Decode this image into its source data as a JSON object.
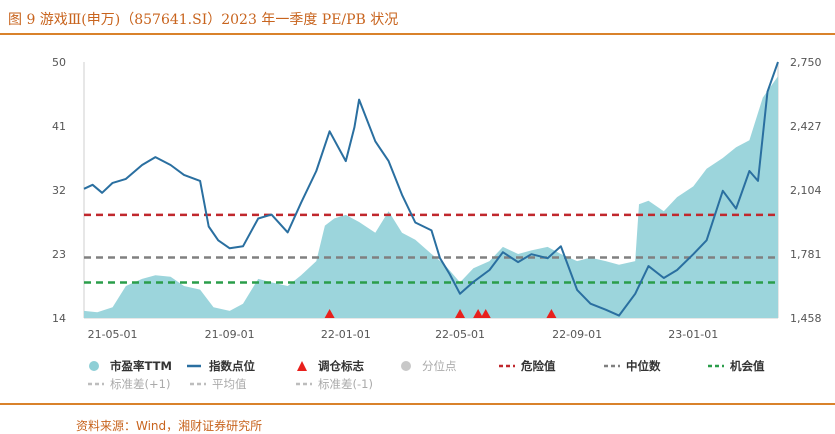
{
  "title": "图 9  游戏Ⅲ(申万)（857641.SI）2023 年一季度 PE/PB 状况",
  "source": "资料来源：Wind，湘财证券研究所",
  "chart_data": {
    "type": "area",
    "left_axis": {
      "min": 14,
      "max": 50,
      "ticks": [
        "50",
        "41",
        "32",
        "23",
        "14"
      ]
    },
    "right_axis": {
      "min": 1458,
      "max": 2750,
      "ticks": [
        "2,750",
        "2,427",
        "2,104",
        "1,781",
        "1,458"
      ]
    },
    "x_ticks": [
      "21-05-01",
      "21-09-01",
      "22-01-01",
      "22-05-01",
      "22-09-01",
      "23-01-01"
    ],
    "reference_lines": [
      {
        "name": "危险值",
        "value": 28.5,
        "color": "#c0282d"
      },
      {
        "name": "中位数",
        "value": 22.5,
        "color": "#808080"
      },
      {
        "name": "机会值",
        "value": 19.0,
        "color": "#2a9d4a"
      }
    ],
    "series": [
      {
        "name": "市盈率TTM",
        "axis": "left",
        "color": "#9cd5dc",
        "points": [
          [
            "2021-04-01",
            15.0
          ],
          [
            "2021-04-15",
            14.8
          ],
          [
            "2021-05-01",
            15.5
          ],
          [
            "2021-05-15",
            18.5
          ],
          [
            "2021-06-01",
            19.5
          ],
          [
            "2021-06-15",
            20.0
          ],
          [
            "2021-07-01",
            19.8
          ],
          [
            "2021-07-15",
            18.5
          ],
          [
            "2021-08-01",
            18.0
          ],
          [
            "2021-08-15",
            15.5
          ],
          [
            "2021-09-01",
            15.0
          ],
          [
            "2021-09-15",
            16.0
          ],
          [
            "2021-10-01",
            19.5
          ],
          [
            "2021-10-15",
            19.0
          ],
          [
            "2021-11-01",
            18.5
          ],
          [
            "2021-11-15",
            20.0
          ],
          [
            "2021-12-01",
            22.0
          ],
          [
            "2021-12-10",
            27.0
          ],
          [
            "2021-12-20",
            28.0
          ],
          [
            "2022-01-01",
            28.5
          ],
          [
            "2022-01-15",
            27.5
          ],
          [
            "2022-02-01",
            26.0
          ],
          [
            "2022-02-15",
            29.0
          ],
          [
            "2022-03-01",
            26.0
          ],
          [
            "2022-03-15",
            25.0
          ],
          [
            "2022-04-01",
            23.0
          ],
          [
            "2022-04-15",
            21.5
          ],
          [
            "2022-05-01",
            19.0
          ],
          [
            "2022-05-15",
            21.0
          ],
          [
            "2022-06-01",
            22.0
          ],
          [
            "2022-06-15",
            24.0
          ],
          [
            "2022-07-01",
            23.0
          ],
          [
            "2022-07-15",
            23.5
          ],
          [
            "2022-08-01",
            24.0
          ],
          [
            "2022-08-15",
            23.0
          ],
          [
            "2022-09-01",
            22.0
          ],
          [
            "2022-09-15",
            22.5
          ],
          [
            "2022-10-01",
            22.0
          ],
          [
            "2022-10-15",
            21.5
          ],
          [
            "2022-11-01",
            22.0
          ],
          [
            "2022-11-05",
            30.0
          ],
          [
            "2022-11-15",
            30.5
          ],
          [
            "2022-12-01",
            29.0
          ],
          [
            "2022-12-15",
            31.0
          ],
          [
            "2023-01-01",
            32.5
          ],
          [
            "2023-01-15",
            35.0
          ],
          [
            "2023-02-01",
            36.5
          ],
          [
            "2023-02-15",
            38.0
          ],
          [
            "2023-03-01",
            39.0
          ],
          [
            "2023-03-15",
            45.0
          ],
          [
            "2023-03-31",
            48.0
          ]
        ]
      },
      {
        "name": "指数点位",
        "axis": "right",
        "color": "#2a6fa0",
        "points": [
          [
            "2021-04-01",
            2110
          ],
          [
            "2021-04-10",
            2130
          ],
          [
            "2021-04-20",
            2090
          ],
          [
            "2021-05-01",
            2140
          ],
          [
            "2021-05-15",
            2160
          ],
          [
            "2021-06-01",
            2230
          ],
          [
            "2021-06-15",
            2270
          ],
          [
            "2021-07-01",
            2230
          ],
          [
            "2021-07-15",
            2180
          ],
          [
            "2021-08-01",
            2150
          ],
          [
            "2021-08-10",
            1920
          ],
          [
            "2021-08-20",
            1850
          ],
          [
            "2021-09-01",
            1810
          ],
          [
            "2021-09-15",
            1820
          ],
          [
            "2021-10-01",
            1960
          ],
          [
            "2021-10-15",
            1980
          ],
          [
            "2021-11-01",
            1890
          ],
          [
            "2021-11-15",
            2040
          ],
          [
            "2021-12-01",
            2200
          ],
          [
            "2021-12-15",
            2400
          ],
          [
            "2022-01-01",
            2250
          ],
          [
            "2022-01-10",
            2420
          ],
          [
            "2022-01-15",
            2560
          ],
          [
            "2022-02-01",
            2350
          ],
          [
            "2022-02-15",
            2250
          ],
          [
            "2022-03-01",
            2080
          ],
          [
            "2022-03-15",
            1940
          ],
          [
            "2022-04-01",
            1900
          ],
          [
            "2022-04-10",
            1760
          ],
          [
            "2022-04-20",
            1680
          ],
          [
            "2022-05-01",
            1580
          ],
          [
            "2022-05-15",
            1640
          ],
          [
            "2022-06-01",
            1700
          ],
          [
            "2022-06-15",
            1790
          ],
          [
            "2022-07-01",
            1740
          ],
          [
            "2022-07-15",
            1780
          ],
          [
            "2022-08-01",
            1760
          ],
          [
            "2022-08-15",
            1820
          ],
          [
            "2022-09-01",
            1600
          ],
          [
            "2022-09-15",
            1530
          ],
          [
            "2022-10-01",
            1500
          ],
          [
            "2022-10-15",
            1470
          ],
          [
            "2022-11-01",
            1580
          ],
          [
            "2022-11-15",
            1720
          ],
          [
            "2022-12-01",
            1660
          ],
          [
            "2022-12-15",
            1700
          ],
          [
            "2023-01-01",
            1780
          ],
          [
            "2023-01-15",
            1850
          ],
          [
            "2023-02-01",
            2100
          ],
          [
            "2023-02-15",
            2010
          ],
          [
            "2023-03-01",
            2200
          ],
          [
            "2023-03-10",
            2150
          ],
          [
            "2023-03-20",
            2600
          ],
          [
            "2023-03-31",
            2750
          ]
        ]
      }
    ],
    "markers": {
      "name": "调仓标志",
      "color": "#e8201c",
      "dates": [
        "2021-12-15",
        "2022-05-01",
        "2022-05-20",
        "2022-05-28",
        "2022-08-05"
      ]
    },
    "legend": {
      "placement": "bottom",
      "row1": [
        {
          "label": "市盈率TTM",
          "kind": "dot",
          "color": "#8ecfd6"
        },
        {
          "label": "指数点位",
          "kind": "line",
          "color": "#2a6fa0"
        },
        {
          "label": "调仓标志",
          "kind": "triangle",
          "color": "#e8201c"
        },
        {
          "label": "分位点",
          "kind": "dot",
          "color": "#c8c8c8"
        },
        {
          "label": "危险值",
          "kind": "dash",
          "color": "#c0282d"
        },
        {
          "label": "中位数",
          "kind": "dash",
          "color": "#808080"
        },
        {
          "label": "机会值",
          "kind": "dash",
          "color": "#2a9d4a"
        }
      ],
      "row2": [
        {
          "label": "标准差(+1)",
          "kind": "dash",
          "color": "#bdbdbd"
        },
        {
          "label": "平均值",
          "kind": "dash",
          "color": "#bdbdbd"
        },
        {
          "label": "标准差(-1)",
          "kind": "dash",
          "color": "#bdbdbd"
        }
      ]
    }
  }
}
